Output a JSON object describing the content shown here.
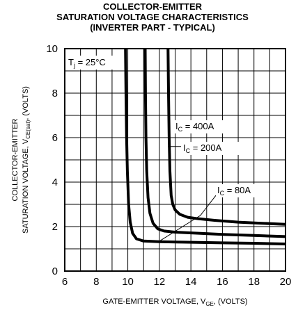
{
  "chart_data": {
    "type": "line",
    "title_lines": [
      "COLLECTOR-EMITTER",
      "SATURATION VOLTAGE CHARACTERISTICS",
      "(INVERTER PART - TYPICAL)"
    ],
    "xlabel": {
      "main": "GATE-EMITTER VOLTAGE, V",
      "sub": "GE",
      "tail": ", (VOLTS)"
    },
    "ylabel": {
      "line1": "COLLECTOR-EMITTER",
      "line2_main": "SATURATION VOLTAGE, V",
      "line2_sub": "CE(sat)",
      "line2_tail": ", (VOLTS)"
    },
    "xlim": [
      6,
      20
    ],
    "ylim": [
      0,
      10
    ],
    "x_ticks": [
      6,
      8,
      10,
      12,
      14,
      16,
      18,
      20
    ],
    "y_ticks": [
      0,
      2,
      4,
      6,
      8,
      10
    ],
    "grid": true,
    "condition": {
      "main": "T",
      "sub": "j",
      "tail": " = 25°C"
    },
    "series": [
      {
        "name": "400A",
        "label": {
          "main": "I",
          "sub": "C",
          "tail": " = 400A"
        },
        "x": [
          12.55,
          12.58,
          12.62,
          12.67,
          12.75,
          12.85,
          13.0,
          13.3,
          13.8,
          14.5,
          15.5,
          17.0,
          18.5,
          20.0
        ],
        "y": [
          10.0,
          8.0,
          6.0,
          4.5,
          3.4,
          3.0,
          2.75,
          2.55,
          2.42,
          2.35,
          2.28,
          2.2,
          2.15,
          2.1
        ]
      },
      {
        "name": "200A",
        "label": {
          "main": "I",
          "sub": "C",
          "tail": " = 200A"
        },
        "x": [
          11.1,
          11.12,
          11.15,
          11.2,
          11.28,
          11.4,
          11.6,
          11.9,
          12.3,
          13.0,
          14.5,
          16.0,
          18.0,
          20.0
        ],
        "y": [
          10.0,
          8.0,
          6.0,
          4.5,
          3.3,
          2.6,
          2.15,
          1.9,
          1.8,
          1.75,
          1.7,
          1.65,
          1.6,
          1.55
        ]
      },
      {
        "name": "80A",
        "label": {
          "main": "I",
          "sub": "C",
          "tail": " = 80A"
        },
        "x": [
          9.85,
          9.88,
          9.92,
          9.97,
          10.05,
          10.15,
          10.3,
          10.55,
          11.0,
          12.0,
          13.5,
          16.0,
          18.0,
          20.0
        ],
        "y": [
          10.0,
          8.0,
          6.0,
          4.5,
          3.0,
          2.2,
          1.7,
          1.45,
          1.35,
          1.32,
          1.3,
          1.27,
          1.25,
          1.22
        ]
      }
    ]
  }
}
